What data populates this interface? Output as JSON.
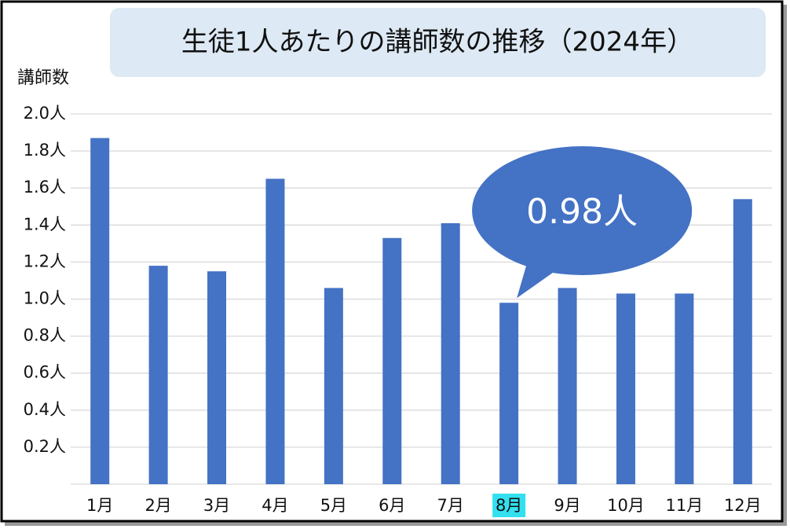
{
  "chart_data": {
    "type": "bar",
    "title": "生徒1人あたりの講師数の推移（2024年）",
    "y_label": "講師数",
    "categories": [
      "1月",
      "2月",
      "3月",
      "4月",
      "5月",
      "6月",
      "7月",
      "8月",
      "9月",
      "10月",
      "11月",
      "12月"
    ],
    "values": [
      1.87,
      1.18,
      1.15,
      1.65,
      1.06,
      1.33,
      1.41,
      0.98,
      1.06,
      1.03,
      1.03,
      1.54
    ],
    "value_labels": [
      null,
      null,
      null,
      null,
      null,
      null,
      null,
      "0.98人",
      null,
      null,
      null,
      null
    ],
    "color": "#4472c4",
    "highlight_color": "#33e0f0",
    "ylim": [
      0,
      2.0
    ],
    "yticks": [
      {
        "value": 0.2,
        "label": "0.2人"
      },
      {
        "value": 0.4,
        "label": "0.4人"
      },
      {
        "value": 0.6,
        "label": "0.6人"
      },
      {
        "value": 0.8,
        "label": "0.8人"
      },
      {
        "value": 1.0,
        "label": "1.0人"
      },
      {
        "value": 1.2,
        "label": "1.2人"
      },
      {
        "value": 1.4,
        "label": "1.4人"
      },
      {
        "value": 1.6,
        "label": "1.6人"
      },
      {
        "value": 1.8,
        "label": "1.8人"
      },
      {
        "value": 2.0,
        "label": "2.0人"
      }
    ],
    "grid": true
  }
}
